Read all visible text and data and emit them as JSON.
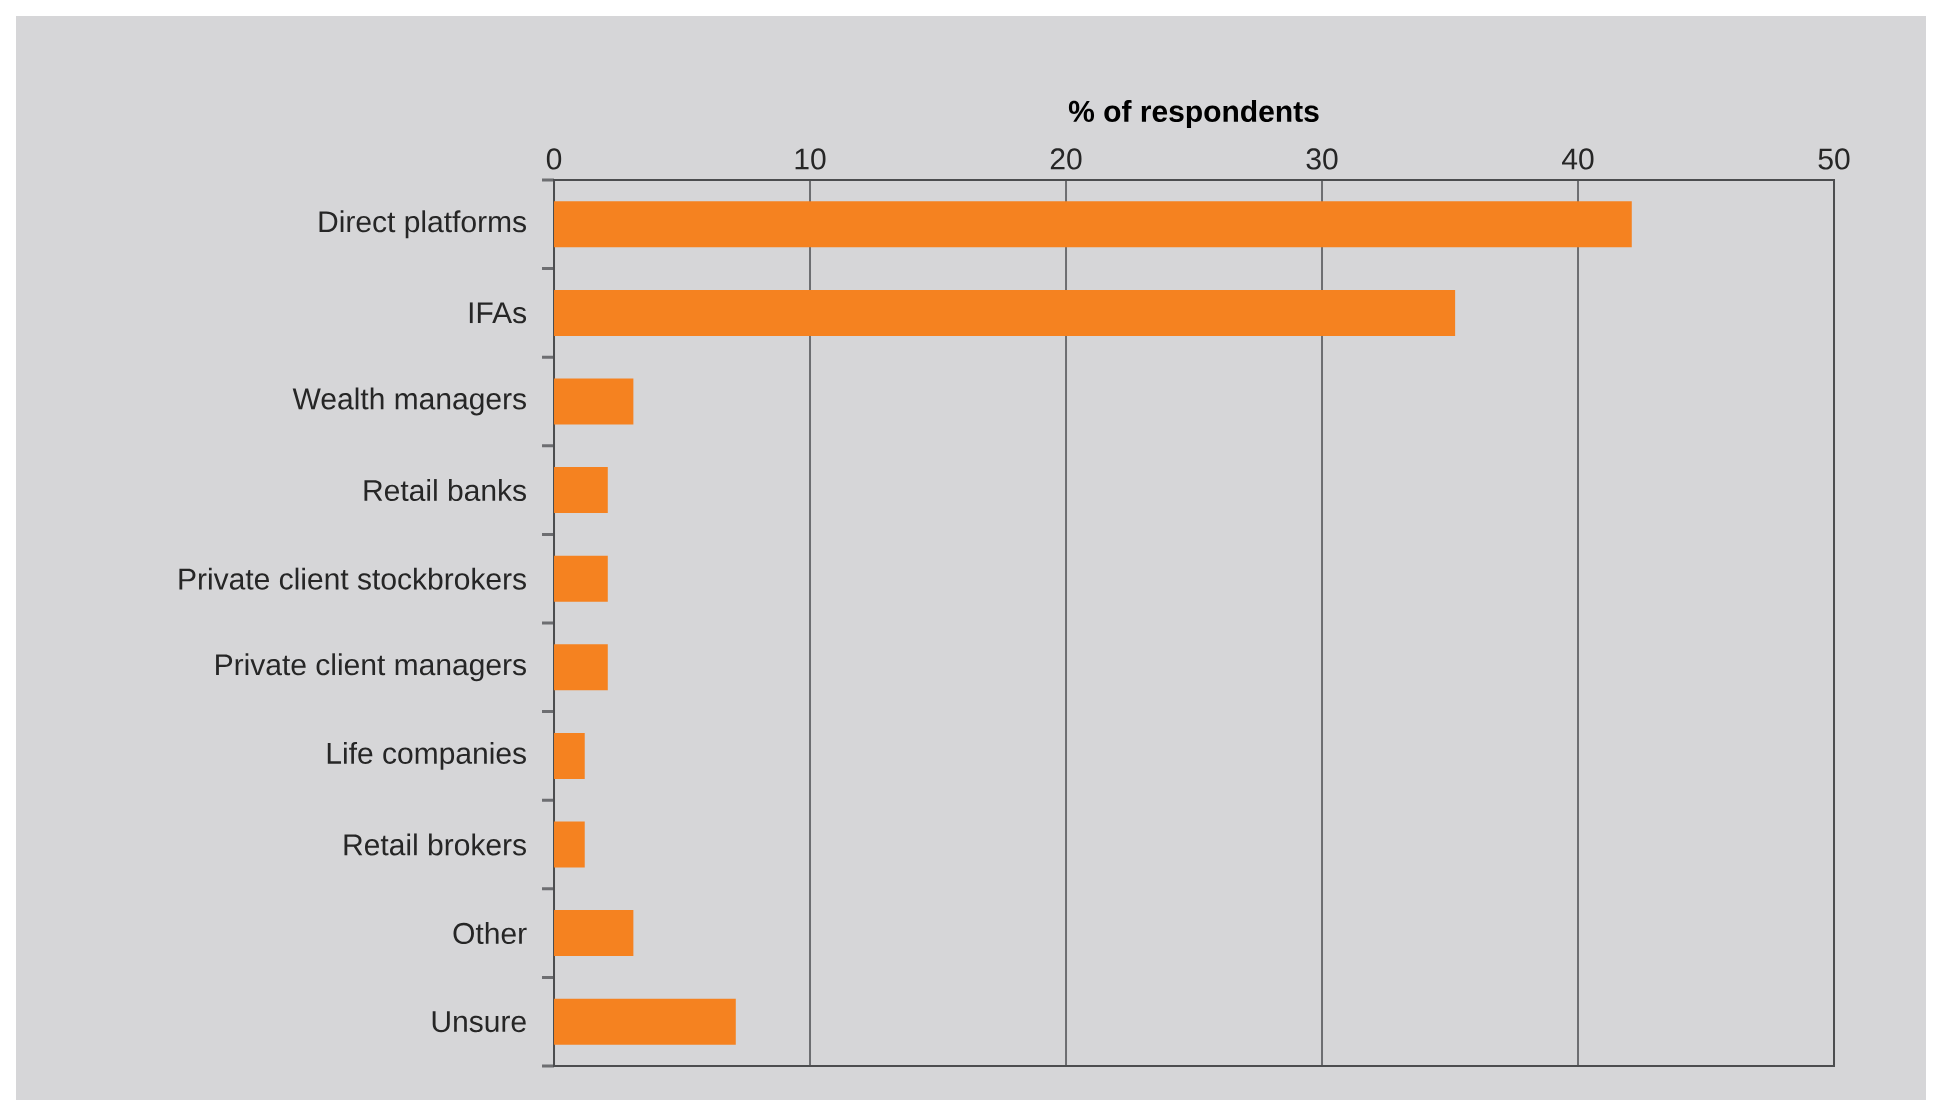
{
  "chart_data": {
    "type": "bar",
    "orientation": "horizontal",
    "xlabel": "% of respondents",
    "categories": [
      "Direct platforms",
      "IFAs",
      "Wealth managers",
      "Retail banks",
      "Private client stockbrokers",
      "Private client managers",
      "Life companies",
      "Retail brokers",
      "Other",
      "Unsure"
    ],
    "values": [
      42.1,
      35.2,
      3.1,
      2.1,
      2.1,
      2.1,
      1.2,
      1.2,
      3.1,
      7.1
    ],
    "color": "#f58220",
    "xlim": [
      0,
      50
    ],
    "xticks": [
      0,
      10,
      20,
      30,
      40,
      50
    ],
    "grid": "x"
  }
}
